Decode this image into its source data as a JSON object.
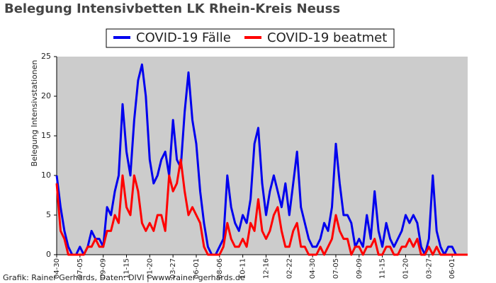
{
  "chart_data": {
    "type": "line",
    "title": "Belegung Intensivbetten LK Rhein-Kreis Neuss",
    "y_label": "Belegung Intensivstationen",
    "footer": "Grafik: Rainer Gerhards, Daten: DIVI | www.rainer-gerhards.de",
    "categories": [
      "04-30",
      null,
      null,
      null,
      null,
      null,
      "07-05",
      null,
      null,
      null,
      null,
      null,
      "09-09",
      null,
      null,
      null,
      null,
      null,
      "11-15",
      null,
      null,
      null,
      null,
      null,
      "01-20",
      null,
      null,
      null,
      null,
      null,
      "03-27",
      null,
      null,
      null,
      null,
      null,
      "06-01",
      null,
      null,
      null,
      null,
      null,
      "08-06",
      null,
      null,
      null,
      null,
      null,
      "10-11",
      null,
      null,
      null,
      null,
      null,
      "12-16",
      null,
      null,
      null,
      null,
      null,
      "02-22",
      null,
      null,
      null,
      null,
      null,
      "04-30",
      null,
      null,
      null,
      null,
      null,
      "07-05",
      null,
      null,
      null,
      null,
      null,
      "09-09",
      null,
      null,
      null,
      null,
      null,
      "11-15",
      null,
      null,
      null,
      null,
      null,
      "01-20",
      null,
      null,
      null,
      null,
      null,
      "03-27",
      null,
      null,
      null,
      null,
      null,
      "06-01",
      null,
      null,
      null,
      null
    ],
    "series": [
      {
        "name": "COVID-19 Fälle",
        "color": "#0000ee",
        "values": [
          10,
          6,
          3,
          1,
          0,
          0,
          1,
          0,
          1,
          3,
          2,
          2,
          1,
          6,
          5,
          8,
          10,
          19,
          13,
          10,
          17,
          22,
          24,
          20,
          12,
          9,
          10,
          12,
          13,
          10,
          17,
          12,
          11,
          18,
          23,
          17,
          14,
          8,
          4,
          1,
          0,
          0,
          1,
          2,
          10,
          6,
          4,
          3,
          5,
          4,
          7,
          14,
          16,
          9,
          5,
          8,
          10,
          8,
          6,
          9,
          5,
          9,
          13,
          6,
          4,
          2,
          1,
          1,
          2,
          4,
          3,
          6,
          14,
          9,
          5,
          5,
          4,
          1,
          2,
          1,
          5,
          2,
          8,
          3,
          1,
          4,
          2,
          1,
          2,
          3,
          5,
          4,
          5,
          4,
          1,
          0,
          2,
          10,
          3,
          1,
          0,
          1,
          1,
          0,
          0,
          0,
          0
        ]
      },
      {
        "name": "COVID-19 beatmet",
        "color": "#ff0000",
        "values": [
          9,
          3,
          2,
          0,
          0,
          0,
          0,
          0,
          1,
          1,
          2,
          1,
          1,
          3,
          3,
          5,
          4,
          10,
          6,
          5,
          10,
          8,
          4,
          3,
          4,
          3,
          5,
          5,
          3,
          10,
          8,
          9,
          12,
          8,
          5,
          6,
          5,
          4,
          1,
          0,
          0,
          0,
          0,
          1,
          4,
          2,
          1,
          1,
          2,
          1,
          4,
          3,
          7,
          3,
          2,
          3,
          5,
          6,
          3,
          1,
          1,
          3,
          4,
          1,
          1,
          0,
          0,
          0,
          1,
          0,
          1,
          2,
          5,
          3,
          2,
          2,
          0,
          1,
          1,
          0,
          1,
          1,
          2,
          0,
          0,
          1,
          1,
          0,
          0,
          1,
          1,
          2,
          1,
          2,
          0,
          0,
          1,
          0,
          1,
          0,
          0,
          0,
          0,
          0,
          0,
          0,
          0
        ]
      }
    ],
    "ylim": [
      0,
      25
    ],
    "yticks": [
      0,
      5,
      10,
      15,
      20,
      25
    ],
    "grid": false,
    "legend": "top"
  }
}
